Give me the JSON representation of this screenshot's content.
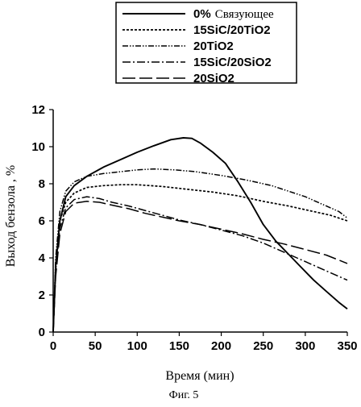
{
  "chart_data": {
    "type": "line",
    "title": "",
    "xlabel": "Время (мин)",
    "ylabel": "Выход бензола , %",
    "caption": "Фиг. 5",
    "xlim": [
      0,
      350
    ],
    "ylim": [
      0,
      12
    ],
    "xticks": [
      0,
      50,
      100,
      150,
      200,
      250,
      300,
      350
    ],
    "yticks": [
      0,
      2,
      4,
      6,
      8,
      10,
      12
    ],
    "grid": false,
    "legend_position": "top-center, above plot",
    "series": [
      {
        "legend": [
          "0%",
          "Связующее"
        ],
        "dash": "solid",
        "width": 1.9,
        "points": [
          [
            0,
            0
          ],
          [
            3,
            3.6
          ],
          [
            8,
            6.0
          ],
          [
            15,
            7.3
          ],
          [
            25,
            7.9
          ],
          [
            40,
            8.4
          ],
          [
            60,
            8.9
          ],
          [
            80,
            9.3
          ],
          [
            100,
            9.7
          ],
          [
            120,
            10.05
          ],
          [
            140,
            10.38
          ],
          [
            155,
            10.48
          ],
          [
            165,
            10.45
          ],
          [
            175,
            10.2
          ],
          [
            190,
            9.7
          ],
          [
            205,
            9.1
          ],
          [
            220,
            8.1
          ],
          [
            235,
            7.0
          ],
          [
            250,
            5.8
          ],
          [
            265,
            4.9
          ],
          [
            280,
            4.2
          ],
          [
            295,
            3.5
          ],
          [
            310,
            2.8
          ],
          [
            325,
            2.2
          ],
          [
            340,
            1.6
          ],
          [
            350,
            1.25
          ]
        ]
      },
      {
        "legend": [
          "15SiC/20TiO2"
        ],
        "dash": "3,2",
        "width": 1.7,
        "points": [
          [
            0,
            0
          ],
          [
            3,
            3.5
          ],
          [
            8,
            6.0
          ],
          [
            15,
            7.0
          ],
          [
            25,
            7.5
          ],
          [
            40,
            7.8
          ],
          [
            60,
            7.9
          ],
          [
            80,
            7.95
          ],
          [
            100,
            7.95
          ],
          [
            130,
            7.85
          ],
          [
            160,
            7.7
          ],
          [
            190,
            7.55
          ],
          [
            220,
            7.35
          ],
          [
            250,
            7.05
          ],
          [
            280,
            6.8
          ],
          [
            310,
            6.5
          ],
          [
            330,
            6.3
          ],
          [
            350,
            6.0
          ]
        ]
      },
      {
        "legend": [
          "20TiO2"
        ],
        "dash": "7,2,1.5,2,1.5,2",
        "width": 1.5,
        "points": [
          [
            0,
            0
          ],
          [
            3,
            4.0
          ],
          [
            8,
            6.5
          ],
          [
            15,
            7.6
          ],
          [
            25,
            8.1
          ],
          [
            40,
            8.4
          ],
          [
            60,
            8.55
          ],
          [
            80,
            8.65
          ],
          [
            100,
            8.75
          ],
          [
            120,
            8.8
          ],
          [
            145,
            8.75
          ],
          [
            170,
            8.65
          ],
          [
            200,
            8.45
          ],
          [
            230,
            8.2
          ],
          [
            260,
            7.9
          ],
          [
            280,
            7.6
          ],
          [
            300,
            7.3
          ],
          [
            320,
            6.9
          ],
          [
            340,
            6.5
          ],
          [
            350,
            6.15
          ]
        ]
      },
      {
        "legend": [
          "15SiC/20SiO2"
        ],
        "dash": "10,3,2,3",
        "width": 1.5,
        "points": [
          [
            0,
            0
          ],
          [
            3,
            3.3
          ],
          [
            8,
            5.6
          ],
          [
            15,
            6.7
          ],
          [
            25,
            7.15
          ],
          [
            40,
            7.3
          ],
          [
            55,
            7.2
          ],
          [
            70,
            7.0
          ],
          [
            90,
            6.8
          ],
          [
            110,
            6.55
          ],
          [
            130,
            6.3
          ],
          [
            150,
            6.05
          ],
          [
            175,
            5.8
          ],
          [
            200,
            5.5
          ],
          [
            225,
            5.2
          ],
          [
            250,
            4.8
          ],
          [
            275,
            4.3
          ],
          [
            300,
            3.8
          ],
          [
            325,
            3.3
          ],
          [
            350,
            2.8
          ]
        ]
      },
      {
        "legend": [
          "20SiO2"
        ],
        "dash": "16,5",
        "width": 1.5,
        "points": [
          [
            0,
            0
          ],
          [
            3,
            3.0
          ],
          [
            8,
            5.3
          ],
          [
            15,
            6.5
          ],
          [
            25,
            6.95
          ],
          [
            40,
            7.05
          ],
          [
            55,
            7.0
          ],
          [
            70,
            6.85
          ],
          [
            90,
            6.65
          ],
          [
            110,
            6.4
          ],
          [
            130,
            6.2
          ],
          [
            150,
            6.0
          ],
          [
            175,
            5.8
          ],
          [
            200,
            5.55
          ],
          [
            225,
            5.3
          ],
          [
            250,
            5.0
          ],
          [
            275,
            4.75
          ],
          [
            300,
            4.45
          ],
          [
            325,
            4.15
          ],
          [
            350,
            3.7
          ]
        ]
      }
    ]
  }
}
